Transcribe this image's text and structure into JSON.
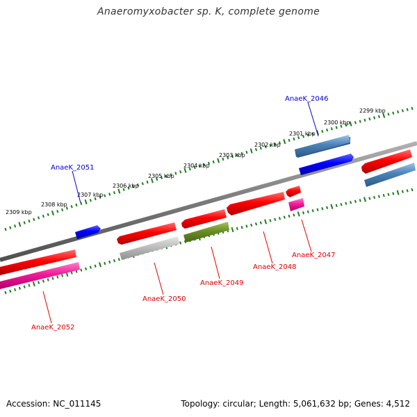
{
  "title": "Anaeromyxobacter sp. K, complete genome",
  "footer": {
    "accession": "Accession: NC_011145",
    "summary": "Topology: circular; Length: 5,061,632 bp; Genes: 4,512"
  },
  "scale": {
    "ticks": [
      {
        "label": "2299 kbp"
      },
      {
        "label": "2300 kbp"
      },
      {
        "label": "2301 kbp"
      },
      {
        "label": "2302 kbp"
      },
      {
        "label": "2303 kbp"
      },
      {
        "label": "2304 kbp"
      },
      {
        "label": "2305 kbp"
      },
      {
        "label": "2306 kbp"
      },
      {
        "label": "2307 kbp"
      },
      {
        "label": "2308 kbp"
      },
      {
        "label": "2309 kbp"
      }
    ]
  },
  "genes": [
    {
      "id": "AnaeK_2046",
      "strand": "forward",
      "color": "#0000ee"
    },
    {
      "id": "AnaeK_2051",
      "strand": "forward",
      "color": "#0000ee"
    },
    {
      "id": "AnaeK_2047",
      "strand": "reverse",
      "color": "#ee0000"
    },
    {
      "id": "AnaeK_2048",
      "strand": "reverse",
      "color": "#ee0000"
    },
    {
      "id": "AnaeK_2049",
      "strand": "reverse",
      "color": "#ee0000"
    },
    {
      "id": "AnaeK_2050",
      "strand": "reverse",
      "color": "#ee0000"
    },
    {
      "id": "AnaeK_2052",
      "strand": "reverse",
      "color": "#ee0000"
    }
  ],
  "colors": {
    "backbone": "#808080",
    "scale": "#1e7a1e",
    "forward_label": "#0000cc",
    "reverse_label": "#dd0000"
  }
}
